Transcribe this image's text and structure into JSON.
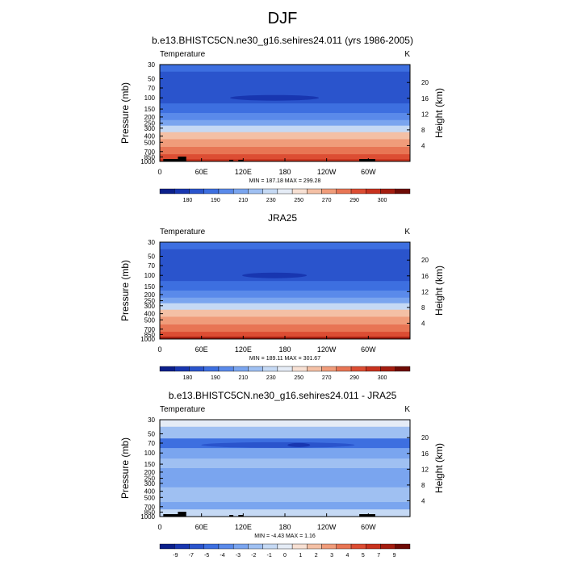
{
  "page": {
    "title": "DJF"
  },
  "chart_data": [
    {
      "type": "heatmap",
      "title": "b.e13.BHISTC5CN.ne30_g16.sehires24.011 (yrs 1986-2005)",
      "variable_label": "Temperature",
      "units_label": "K",
      "ylabel": "Pressure (mb)",
      "ylabel_right": "Height (km)",
      "x_ticks": [
        "0",
        "60E",
        "120E",
        "180",
        "120W",
        "60W"
      ],
      "y_ticks": [
        "30",
        "50",
        "70",
        "100",
        "150",
        "200",
        "250",
        "300",
        "400",
        "500",
        "700",
        "850",
        "1000"
      ],
      "y_ticks_right": [
        "20",
        "16",
        "12",
        "8",
        "4"
      ],
      "stats": "MIN = 187.18  MAX = 299.28",
      "min": 187.18,
      "max": 299.28,
      "colorbar_labels": [
        "180",
        "190",
        "210",
        "230",
        "250",
        "270",
        "290",
        "300"
      ],
      "colorbar_colors": [
        "#0b1f8a",
        "#1836b0",
        "#2a54cc",
        "#3d6fe0",
        "#5a8aea",
        "#7aa5ef",
        "#9fc0f2",
        "#c5d9f4",
        "#e5ecf6",
        "#f7e0d3",
        "#f4c0a5",
        "#f09c7a",
        "#e87554",
        "#dc4d33",
        "#c8321e",
        "#a41d10",
        "#6e0b05"
      ],
      "bands": [
        {
          "p": 30,
          "color": "#3d6fe0"
        },
        {
          "p": 50,
          "color": "#2a54cc"
        },
        {
          "p": 70,
          "color": "#2a54cc"
        },
        {
          "p": 100,
          "color": "#2a54cc"
        },
        {
          "p": 150,
          "color": "#3d6fe0"
        },
        {
          "p": 200,
          "color": "#5a8aea"
        },
        {
          "p": 250,
          "color": "#7aa5ef"
        },
        {
          "p": 300,
          "color": "#c5d9f4"
        },
        {
          "p": 400,
          "color": "#f4c0a5"
        },
        {
          "p": 500,
          "color": "#f09c7a"
        },
        {
          "p": 700,
          "color": "#e87554"
        },
        {
          "p": 850,
          "color": "#dc4d33"
        },
        {
          "p": 1000,
          "color": "#c8321e"
        }
      ],
      "topography": true
    },
    {
      "type": "heatmap",
      "title": "JRA25",
      "variable_label": "Temperature",
      "units_label": "K",
      "ylabel": "Pressure (mb)",
      "ylabel_right": "Height (km)",
      "x_ticks": [
        "0",
        "60E",
        "120E",
        "180",
        "120W",
        "60W"
      ],
      "y_ticks": [
        "30",
        "50",
        "70",
        "100",
        "150",
        "200",
        "250",
        "300",
        "400",
        "500",
        "700",
        "850",
        "1000"
      ],
      "y_ticks_right": [
        "20",
        "16",
        "12",
        "8",
        "4"
      ],
      "stats": "MIN = 189.11  MAX = 301.67",
      "min": 189.11,
      "max": 301.67,
      "colorbar_labels": [
        "180",
        "190",
        "210",
        "230",
        "250",
        "270",
        "290",
        "300"
      ],
      "colorbar_colors": [
        "#0b1f8a",
        "#1836b0",
        "#2a54cc",
        "#3d6fe0",
        "#5a8aea",
        "#7aa5ef",
        "#9fc0f2",
        "#c5d9f4",
        "#e5ecf6",
        "#f7e0d3",
        "#f4c0a5",
        "#f09c7a",
        "#e87554",
        "#dc4d33",
        "#c8321e",
        "#a41d10",
        "#6e0b05"
      ],
      "bands": [
        {
          "p": 30,
          "color": "#3d6fe0"
        },
        {
          "p": 50,
          "color": "#2a54cc"
        },
        {
          "p": 70,
          "color": "#2a54cc"
        },
        {
          "p": 100,
          "color": "#2a54cc"
        },
        {
          "p": 150,
          "color": "#3d6fe0"
        },
        {
          "p": 200,
          "color": "#5a8aea"
        },
        {
          "p": 250,
          "color": "#7aa5ef"
        },
        {
          "p": 300,
          "color": "#c5d9f4"
        },
        {
          "p": 400,
          "color": "#f4c0a5"
        },
        {
          "p": 500,
          "color": "#f09c7a"
        },
        {
          "p": 700,
          "color": "#e87554"
        },
        {
          "p": 850,
          "color": "#dc4d33"
        },
        {
          "p": 1000,
          "color": "#a41d10"
        }
      ],
      "topography": false
    },
    {
      "type": "heatmap",
      "title": "b.e13.BHISTC5CN.ne30_g16.sehires24.011 - JRA25",
      "variable_label": "Temperature",
      "units_label": "K",
      "ylabel": "Pressure (mb)",
      "ylabel_right": "Height (km)",
      "x_ticks": [
        "0",
        "60E",
        "120E",
        "180",
        "120W",
        "60W"
      ],
      "y_ticks": [
        "30",
        "50",
        "70",
        "100",
        "150",
        "200",
        "250",
        "300",
        "400",
        "500",
        "700",
        "850",
        "1000"
      ],
      "y_ticks_right": [
        "20",
        "16",
        "12",
        "8",
        "4"
      ],
      "stats": "MIN =  -4.43  MAX =   1.16",
      "min": -4.43,
      "max": 1.16,
      "colorbar_labels": [
        "-9",
        "-7",
        "-5",
        "-4",
        "-3",
        "-2",
        "-1",
        "0",
        "1",
        "2",
        "3",
        "4",
        "5",
        "7",
        "9"
      ],
      "colorbar_colors": [
        "#0b1f8a",
        "#1836b0",
        "#2a54cc",
        "#3d6fe0",
        "#5a8aea",
        "#7aa5ef",
        "#9fc0f2",
        "#c5d9f4",
        "#e5ecf6",
        "#f7e0d3",
        "#f4c0a5",
        "#f09c7a",
        "#e87554",
        "#dc4d33",
        "#c8321e",
        "#a41d10",
        "#6e0b05"
      ],
      "bands": [
        {
          "p": 30,
          "color": "#e5ecf6"
        },
        {
          "p": 50,
          "color": "#9fc0f2"
        },
        {
          "p": 70,
          "color": "#3d6fe0"
        },
        {
          "p": 100,
          "color": "#7aa5ef"
        },
        {
          "p": 150,
          "color": "#9fc0f2"
        },
        {
          "p": 200,
          "color": "#7aa5ef"
        },
        {
          "p": 250,
          "color": "#7aa5ef"
        },
        {
          "p": 300,
          "color": "#7aa5ef"
        },
        {
          "p": 400,
          "color": "#9fc0f2"
        },
        {
          "p": 500,
          "color": "#9fc0f2"
        },
        {
          "p": 700,
          "color": "#7aa5ef"
        },
        {
          "p": 850,
          "color": "#c5d9f4"
        },
        {
          "p": 1000,
          "color": "#c5d9f4"
        }
      ],
      "topography": true
    }
  ]
}
